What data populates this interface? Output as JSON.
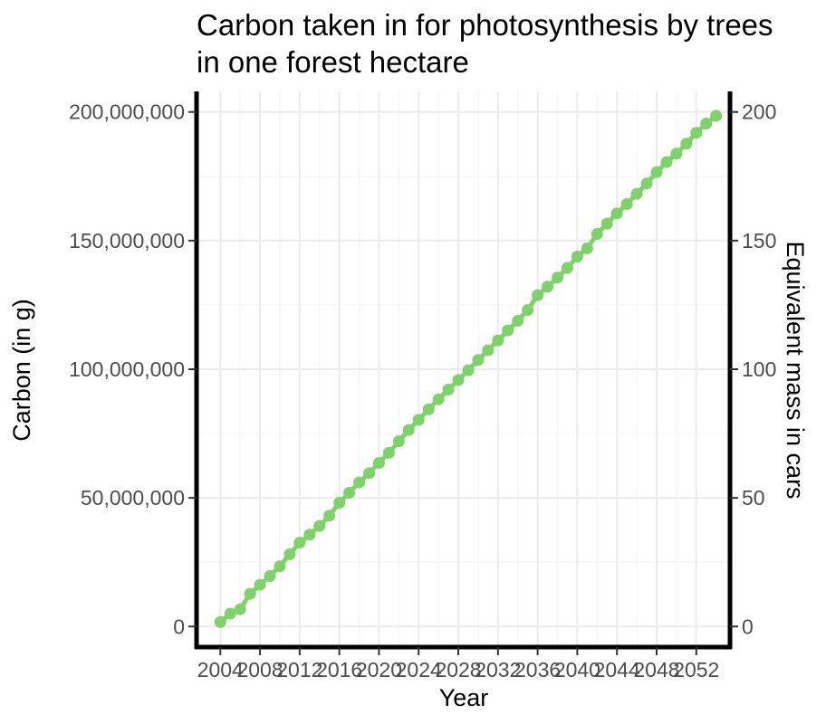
{
  "chart_data": {
    "type": "line",
    "title_line1": "Carbon taken in for photosynthesis by trees",
    "title_line2": "in one forest hectare",
    "xlabel": "Year",
    "ylabel": "Carbon (in g)",
    "y2label": "Equivalent mass in cars",
    "xlim": [
      2001.6,
      2055.4
    ],
    "ylim": [
      -8000000,
      208000000
    ],
    "y2lim": [
      -8,
      208
    ],
    "x_ticks": [
      2004,
      2008,
      2012,
      2016,
      2020,
      2024,
      2028,
      2032,
      2036,
      2040,
      2044,
      2048,
      2052
    ],
    "x_tick_labels": [
      "2004",
      "2008",
      "2012",
      "2016",
      "2020",
      "2024",
      "2028",
      "2032",
      "2036",
      "2040",
      "2044",
      "2048",
      "2052"
    ],
    "y_ticks": [
      0,
      50000000,
      100000000,
      150000000,
      200000000
    ],
    "y_tick_labels": [
      "0",
      "50,000,000",
      "100,000,000",
      "150,000,000",
      "200,000,000"
    ],
    "y2_ticks": [
      0,
      50,
      100,
      150,
      200
    ],
    "y2_tick_labels": [
      "0",
      "50",
      "100",
      "150",
      "200"
    ],
    "grid": true,
    "series": [
      {
        "color": "#7fd16b",
        "x": [
          2004,
          2005,
          2006,
          2007,
          2008,
          2009,
          2010,
          2011,
          2012,
          2013,
          2014,
          2015,
          2016,
          2017,
          2018,
          2019,
          2020,
          2021,
          2022,
          2023,
          2024,
          2025,
          2026,
          2027,
          2028,
          2029,
          2030,
          2031,
          2032,
          2033,
          2034,
          2035,
          2036,
          2037,
          2038,
          2039,
          2040,
          2041,
          2042,
          2043,
          2044,
          2045,
          2046,
          2047,
          2048,
          2049,
          2050,
          2051,
          2052,
          2053,
          2054
        ],
        "y": [
          1700000,
          5000000,
          6700000,
          12700000,
          16200000,
          19600000,
          23400000,
          28100000,
          32600000,
          35700000,
          39100000,
          43100000,
          48100000,
          52000000,
          56000000,
          59600000,
          63600000,
          67500000,
          72000000,
          76400000,
          80300000,
          84400000,
          88300000,
          92100000,
          95800000,
          99600000,
          103600000,
          107400000,
          111200000,
          115100000,
          118800000,
          123000000,
          128800000,
          132100000,
          135600000,
          139400000,
          143800000,
          147000000,
          152600000,
          156600000,
          160600000,
          164200000,
          168200000,
          172200000,
          176600000,
          180500000,
          183800000,
          187700000,
          191900000,
          195500000,
          198500000
        ]
      }
    ]
  }
}
